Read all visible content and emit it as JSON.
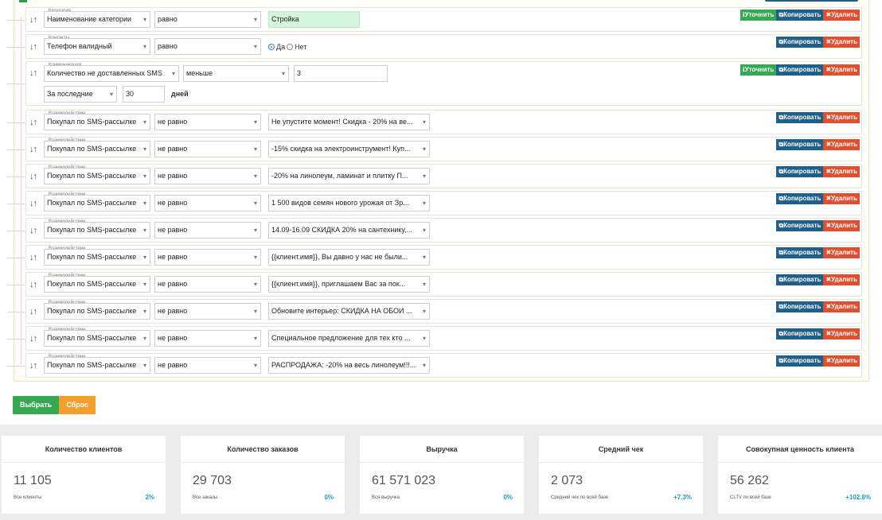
{
  "rows": [
    {
      "caption": "Категория",
      "field": "Наименование категории",
      "op": "равно",
      "value": "Стройка",
      "buttons": [
        "refine",
        "copy",
        "delete"
      ]
    },
    {
      "caption": "Контакты",
      "field": "Телефон валидный",
      "op": "равно",
      "radio_yes": "Да",
      "radio_no": "Нет",
      "buttons": [
        "copy",
        "delete"
      ]
    },
    {
      "caption": "Коммуникация",
      "field": "Количество не доставленных SMS",
      "op": "меньше",
      "value": "3",
      "period": "За последние",
      "period_value": "30",
      "period_unit": "дней",
      "buttons": [
        "refine",
        "copy",
        "delete"
      ]
    },
    {
      "caption": "Взаимодействие",
      "field": "Покупал по SMS-рассылке",
      "op": "не равно",
      "value": "Не упустите момент! Скидка - 20% на ве...",
      "buttons": [
        "copy",
        "delete"
      ]
    },
    {
      "caption": "Взаимодействие",
      "field": "Покупал по SMS-рассылке",
      "op": "не равно",
      "value": "-15% скидка на электроинструмент! Куп...",
      "buttons": [
        "copy",
        "delete"
      ]
    },
    {
      "caption": "Взаимодействие",
      "field": "Покупал по SMS-рассылке",
      "op": "не равно",
      "value": "-20% на линолеум, ламинат и плитку П...",
      "buttons": [
        "copy",
        "delete"
      ]
    },
    {
      "caption": "Взаимодействие",
      "field": "Покупал по SMS-рассылке",
      "op": "не равно",
      "value": "1 500 видов семян нового урожая от Зр...",
      "buttons": [
        "copy",
        "delete"
      ]
    },
    {
      "caption": "Взаимодействие",
      "field": "Покупал по SMS-рассылке",
      "op": "не равно",
      "value": "14.09-16.09 СКИДКА 20% на сантехнику,...",
      "buttons": [
        "copy",
        "delete"
      ]
    },
    {
      "caption": "Взаимодействие",
      "field": "Покупал по SMS-рассылке",
      "op": "не равно",
      "value": "{{клиент.имя}}, Вы давно у нас не были...",
      "buttons": [
        "copy",
        "delete"
      ]
    },
    {
      "caption": "Взаимодействие",
      "field": "Покупал по SMS-рассылке",
      "op": "не равно",
      "value": "{{клиент.имя}}, приглашаем Вас за пок...",
      "buttons": [
        "copy",
        "delete"
      ]
    },
    {
      "caption": "Взаимодействие",
      "field": "Покупал по SMS-рассылке",
      "op": "не равно",
      "value": "Обновите интерьер: СКИДКА НА ОБОИ ...",
      "buttons": [
        "copy",
        "delete"
      ]
    },
    {
      "caption": "Взаимодействие",
      "field": "Покупал по SMS-рассылке",
      "op": "не равно",
      "value": "Специальное предложение для тех кто ...",
      "buttons": [
        "copy",
        "delete"
      ]
    },
    {
      "caption": "Взаимодействие",
      "field": "Покупал по SMS-рассылке",
      "op": "не равно",
      "value": "РАСПРОДАЖА: -20% на весь линолеум!!!...",
      "buttons": [
        "copy",
        "delete"
      ]
    }
  ],
  "button_labels": {
    "refine": "Уточнить",
    "copy": "Копировать",
    "delete": "Удалить"
  },
  "icons": {
    "drag": "sort-arrows-icon",
    "refine": "info-icon",
    "copy": "copy-icon",
    "delete": "close-icon"
  },
  "actions": {
    "select": "Выбрать",
    "reset": "Сброс"
  },
  "stats": [
    {
      "title": "Количество клиентов",
      "value": "11 105",
      "sub": "Все клиенты",
      "pct": "2%"
    },
    {
      "title": "Количество заказов",
      "value": "29 703",
      "sub": "Все заказы",
      "pct": "0%"
    },
    {
      "title": "Выручка",
      "value": "61 571 023",
      "sub": "Вся выручка",
      "pct": "0%"
    },
    {
      "title": "Средний чек",
      "value": "2 073",
      "sub": "Средний чек по всей базе",
      "pct": "+7.3%"
    },
    {
      "title": "Совокупная ценность клиента",
      "value": "56 262",
      "sub": "CLTV по всей базе",
      "pct": "+102.8%"
    }
  ],
  "colors": {
    "green": "#35a852",
    "blue": "#1f5f8b",
    "red": "#e0502f",
    "orange": "#f2a02b",
    "teal": "#1e9ec4"
  }
}
